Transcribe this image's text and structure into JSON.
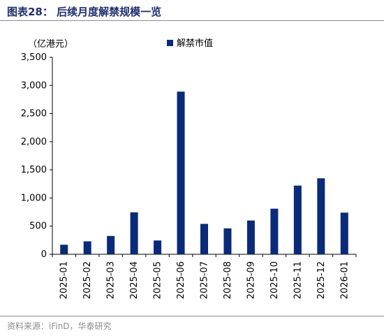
{
  "figure": {
    "title": "图表28：  后续月度解禁规模一览",
    "source": "资料来源：iFinD，华泰研究"
  },
  "chart_data": {
    "type": "bar",
    "categories": [
      "2025-01",
      "2025-02",
      "2025-03",
      "2025-04",
      "2025-05",
      "2025-06",
      "2025-07",
      "2025-08",
      "2025-09",
      "2025-10",
      "2025-11",
      "2025-12",
      "2026-01"
    ],
    "series": [
      {
        "name": "解禁市值",
        "values": [
          170,
          230,
          325,
          745,
          245,
          2890,
          540,
          460,
          600,
          810,
          1220,
          1350,
          740
        ],
        "color": "#0a2a7a"
      }
    ],
    "unit_label": "（亿港元）",
    "ylim": [
      0,
      3500
    ],
    "yticks": [
      0,
      500,
      1000,
      1500,
      2000,
      2500,
      3000,
      3500
    ],
    "ytick_labels": [
      "0",
      "500",
      "1,000",
      "1,500",
      "2,000",
      "2,500",
      "3,000",
      "3,500"
    ],
    "grid": false,
    "legend_position": "top-right"
  }
}
